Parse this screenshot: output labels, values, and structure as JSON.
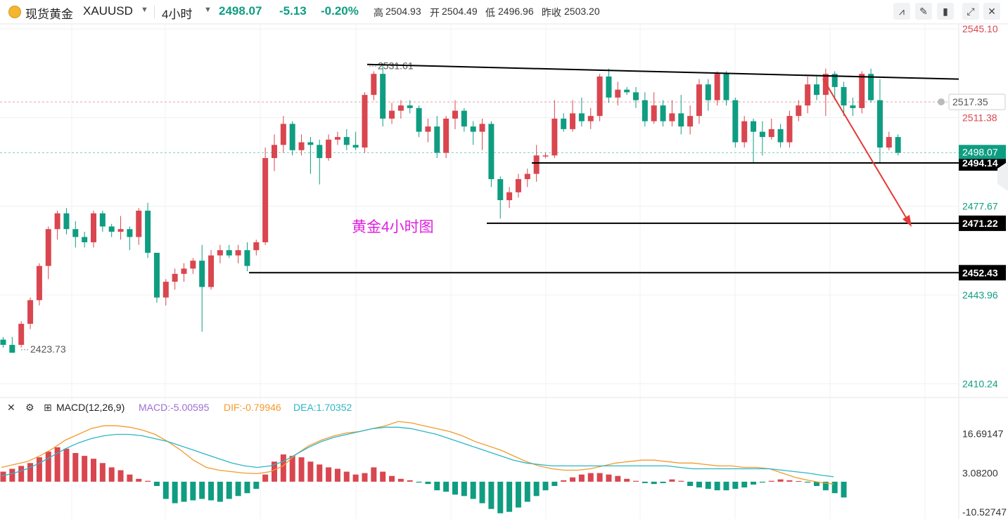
{
  "header": {
    "symbol_name": "现货黄金",
    "symbol_code": "XAUUSD",
    "interval": "4小时",
    "price": "2498.07",
    "change": "-5.13",
    "change_pct": "-0.20%",
    "high_label": "高",
    "high": "2504.93",
    "open_label": "开",
    "open": "2504.49",
    "low_label": "低",
    "low": "2496.96",
    "prev_close_label": "昨收",
    "prev_close": "2503.20",
    "icons": [
      "drawing-tools-icon",
      "pencil-icon",
      "candle-style-icon",
      "expand-icon",
      "close-icon"
    ]
  },
  "annotation_text": "黄金4小时图",
  "colors": {
    "up": "#d9464f",
    "down": "#0f9d82",
    "annotation": "#e01ee0",
    "dif": "#f39a2d",
    "dea": "#2bb6c6",
    "arrow": "#e53935"
  },
  "chart_data": [
    {
      "type": "candlestick",
      "ylim": [
        2405,
        2547
      ],
      "y_tick_labels": [
        "2545.10",
        "2511.38",
        "2477.67",
        "2443.96",
        "2410.24"
      ],
      "markers": {
        "current_price": "2498.07",
        "dashed_level": "2517.35",
        "high_mark": "2531.61",
        "low_mark": "2423.73"
      },
      "support_levels": [
        "2494.14",
        "2471.22",
        "2452.43"
      ],
      "resistance_trendline": {
        "from": [
          43,
          2531.6
        ],
        "to": [
          111,
          2526.0
        ]
      },
      "candles": [
        [
          2427,
          2428,
          2424,
          2425
        ],
        [
          2425,
          2428,
          2422,
          2422
        ],
        [
          2425,
          2434,
          2424,
          2433
        ],
        [
          2433,
          2443,
          2431,
          2442
        ],
        [
          2442,
          2456,
          2440,
          2455
        ],
        [
          2455,
          2470,
          2450,
          2469
        ],
        [
          2469,
          2476,
          2465,
          2475
        ],
        [
          2475,
          2477,
          2467,
          2469
        ],
        [
          2469,
          2472,
          2462,
          2466
        ],
        [
          2466,
          2468,
          2462,
          2464
        ],
        [
          2464,
          2476,
          2462,
          2475
        ],
        [
          2475,
          2476,
          2468,
          2470
        ],
        [
          2470,
          2471,
          2466,
          2468
        ],
        [
          2468,
          2474,
          2465,
          2469
        ],
        [
          2469,
          2470,
          2461,
          2466
        ],
        [
          2466,
          2477,
          2463,
          2476
        ],
        [
          2476,
          2479,
          2458,
          2460
        ],
        [
          2460,
          2460,
          2441,
          2443
        ],
        [
          2443,
          2450,
          2440,
          2449
        ],
        [
          2449,
          2454,
          2446,
          2452
        ],
        [
          2452,
          2456,
          2449,
          2454
        ],
        [
          2454,
          2458,
          2452,
          2457
        ],
        [
          2457,
          2463,
          2430,
          2447
        ],
        [
          2447,
          2461,
          2446,
          2459
        ],
        [
          2459,
          2463,
          2456,
          2461
        ],
        [
          2461,
          2463,
          2458,
          2459
        ],
        [
          2459,
          2463,
          2456,
          2461
        ],
        [
          2461,
          2464,
          2453,
          2455
        ],
        [
          2461,
          2465,
          2459,
          2464
        ],
        [
          2464,
          2500,
          2463,
          2496
        ],
        [
          2496,
          2505,
          2491,
          2501
        ],
        [
          2501,
          2512,
          2498,
          2509
        ],
        [
          2509,
          2510,
          2497,
          2499
        ],
        [
          2499,
          2505,
          2497,
          2502
        ],
        [
          2502,
          2504,
          2490,
          2501
        ],
        [
          2501,
          2503,
          2486,
          2496
        ],
        [
          2496,
          2505,
          2495,
          2503
        ],
        [
          2503,
          2506,
          2501,
          2504
        ],
        [
          2504,
          2507,
          2499,
          2501
        ],
        [
          2501,
          2506,
          2499,
          2500
        ],
        [
          2500,
          2521,
          2498,
          2520
        ],
        [
          2520,
          2529,
          2518,
          2528
        ],
        [
          2528,
          2532,
          2508,
          2511
        ],
        [
          2511,
          2517,
          2509,
          2514
        ],
        [
          2514,
          2518,
          2511,
          2516
        ],
        [
          2516,
          2518,
          2513,
          2515
        ],
        [
          2515,
          2516,
          2504,
          2506
        ],
        [
          2506,
          2511,
          2502,
          2508
        ],
        [
          2508,
          2512,
          2496,
          2498
        ],
        [
          2498,
          2512,
          2496,
          2511
        ],
        [
          2511,
          2518,
          2507,
          2514
        ],
        [
          2514,
          2515,
          2506,
          2508
        ],
        [
          2508,
          2510,
          2501,
          2506
        ],
        [
          2506,
          2511,
          2499,
          2509
        ],
        [
          2509,
          2510,
          2485,
          2488
        ],
        [
          2488,
          2489,
          2473,
          2480
        ],
        [
          2480,
          2485,
          2477,
          2483
        ],
        [
          2483,
          2490,
          2481,
          2488
        ],
        [
          2488,
          2492,
          2485,
          2490
        ],
        [
          2490,
          2501,
          2487,
          2497
        ],
        [
          2497,
          2498,
          2496,
          2497
        ],
        [
          2497,
          2518,
          2496,
          2511
        ],
        [
          2511,
          2513,
          2506,
          2507
        ],
        [
          2507,
          2518,
          2506,
          2513
        ],
        [
          2513,
          2519,
          2508,
          2510
        ],
        [
          2510,
          2515,
          2507,
          2512
        ],
        [
          2512,
          2528,
          2510,
          2527
        ],
        [
          2527,
          2530,
          2517,
          2519
        ],
        [
          2519,
          2525,
          2516,
          2522
        ],
        [
          2522,
          2523,
          2520,
          2521
        ],
        [
          2521,
          2523,
          2515,
          2518
        ],
        [
          2518,
          2521,
          2508,
          2510
        ],
        [
          2510,
          2521,
          2509,
          2516
        ],
        [
          2516,
          2518,
          2508,
          2510
        ],
        [
          2510,
          2518,
          2508,
          2513
        ],
        [
          2513,
          2520,
          2505,
          2508
        ],
        [
          2508,
          2516,
          2505,
          2512
        ],
        [
          2512,
          2526,
          2509,
          2524
        ],
        [
          2524,
          2526,
          2514,
          2518
        ],
        [
          2518,
          2529,
          2516,
          2528
        ],
        [
          2528,
          2529,
          2516,
          2518
        ],
        [
          2518,
          2519,
          2500,
          2502
        ],
        [
          2502,
          2512,
          2500,
          2510
        ],
        [
          2510,
          2511,
          2494,
          2506
        ],
        [
          2506,
          2510,
          2497,
          2504
        ],
        [
          2504,
          2511,
          2503,
          2507
        ],
        [
          2507,
          2509,
          2500,
          2502
        ],
        [
          2502,
          2514,
          2500,
          2512
        ],
        [
          2512,
          2518,
          2510,
          2516
        ],
        [
          2516,
          2527,
          2513,
          2524
        ],
        [
          2524,
          2527,
          2518,
          2520
        ],
        [
          2520,
          2530,
          2512,
          2528
        ],
        [
          2528,
          2529,
          2518,
          2523
        ],
        [
          2523,
          2525,
          2512,
          2516
        ],
        [
          2516,
          2519,
          2512,
          2515
        ],
        [
          2515,
          2529,
          2513,
          2528
        ],
        [
          2528,
          2530,
          2517,
          2518
        ],
        [
          2518,
          2526,
          2494,
          2500
        ],
        [
          2500,
          2506,
          2499,
          2504
        ],
        [
          2504,
          2505,
          2497,
          2498
        ]
      ]
    },
    {
      "type": "macd",
      "params": "MACD(12,26,9)",
      "labels": {
        "macd": "MACD:-5.00595",
        "dif": "DIF:-0.79946",
        "dea": "DEA:1.70352"
      },
      "y_tick_labels": [
        "16.69147",
        "3.08200",
        "-10.52747"
      ],
      "ylim": [
        -13,
        22
      ],
      "histogram": [
        3.5,
        4.5,
        5.5,
        6.5,
        8.5,
        10.5,
        12.0,
        11.5,
        10.0,
        9.0,
        8.0,
        6.5,
        5.0,
        4.0,
        2.5,
        1.0,
        0.3,
        -1.5,
        -6.0,
        -7.5,
        -7.0,
        -6.5,
        -6.0,
        -6.5,
        -7.0,
        -6.0,
        -5.0,
        -4.0,
        -2.5,
        2.5,
        7.0,
        9.5,
        9.0,
        8.5,
        7.0,
        6.0,
        5.0,
        4.5,
        3.5,
        2.5,
        3.0,
        5.0,
        3.5,
        2.0,
        1.0,
        0.5,
        -0.3,
        -0.8,
        -3.0,
        -3.5,
        -4.5,
        -5.0,
        -6.0,
        -7.5,
        -9.5,
        -11.0,
        -10.5,
        -9.0,
        -7.0,
        -5.0,
        -3.0,
        -1.5,
        0.5,
        1.5,
        2.5,
        3.0,
        3.0,
        2.5,
        2.0,
        1.0,
        0.3,
        -0.5,
        -0.8,
        -0.5,
        0.8,
        0.3,
        -1.5,
        -2.0,
        -2.5,
        -3.0,
        -3.0,
        -2.5,
        -2.0,
        -1.0,
        -0.3,
        0.3,
        0.8,
        0.5,
        0.2,
        -0.3,
        -1.5,
        -3.0,
        -4.0,
        -5.5
      ],
      "dif": [
        5,
        6,
        7,
        9,
        11.5,
        14.5,
        16.5,
        18.5,
        19.5,
        19.5,
        19.0,
        18.0,
        16.5,
        14.0,
        11.0,
        7.5,
        5.0,
        4.0,
        3.5,
        3.0,
        2.8,
        3.5,
        5.5,
        9.5,
        12.5,
        14.5,
        16.0,
        17.0,
        17.5,
        18.5,
        19.5,
        21.0,
        20.5,
        19.5,
        18.5,
        17.5,
        16.0,
        14.0,
        12.5,
        11.0,
        9.0,
        7.0,
        5.5,
        4.5,
        4.0,
        4.0,
        4.5,
        5.5,
        6.5,
        7.0,
        7.5,
        7.5,
        7.0,
        6.5,
        6.5,
        6.0,
        5.5,
        5.5,
        5.0,
        5.0,
        4.5,
        3.0,
        1.5,
        0.5,
        -0.3,
        -0.8
      ],
      "dea": [
        2,
        3,
        4.5,
        6.5,
        9,
        11.5,
        13.5,
        15,
        16,
        16.5,
        16.5,
        16,
        15,
        14,
        12.5,
        11,
        9.5,
        8,
        6.5,
        5.5,
        5,
        5.5,
        7,
        9.5,
        12,
        14,
        15.5,
        16.5,
        17.5,
        18.5,
        19,
        19,
        18.5,
        17.5,
        16.5,
        15,
        13.5,
        12,
        10.5,
        9,
        7.5,
        6.5,
        6,
        5.5,
        5.5,
        5.5,
        5.5,
        5.5,
        5.5,
        5.5,
        5.5,
        5.5,
        5.5,
        5.0,
        4.5,
        4.5,
        4.5,
        4.5,
        4.5,
        4.5,
        4.5,
        4.0,
        3.5,
        3.0,
        2.3,
        1.7
      ]
    }
  ]
}
